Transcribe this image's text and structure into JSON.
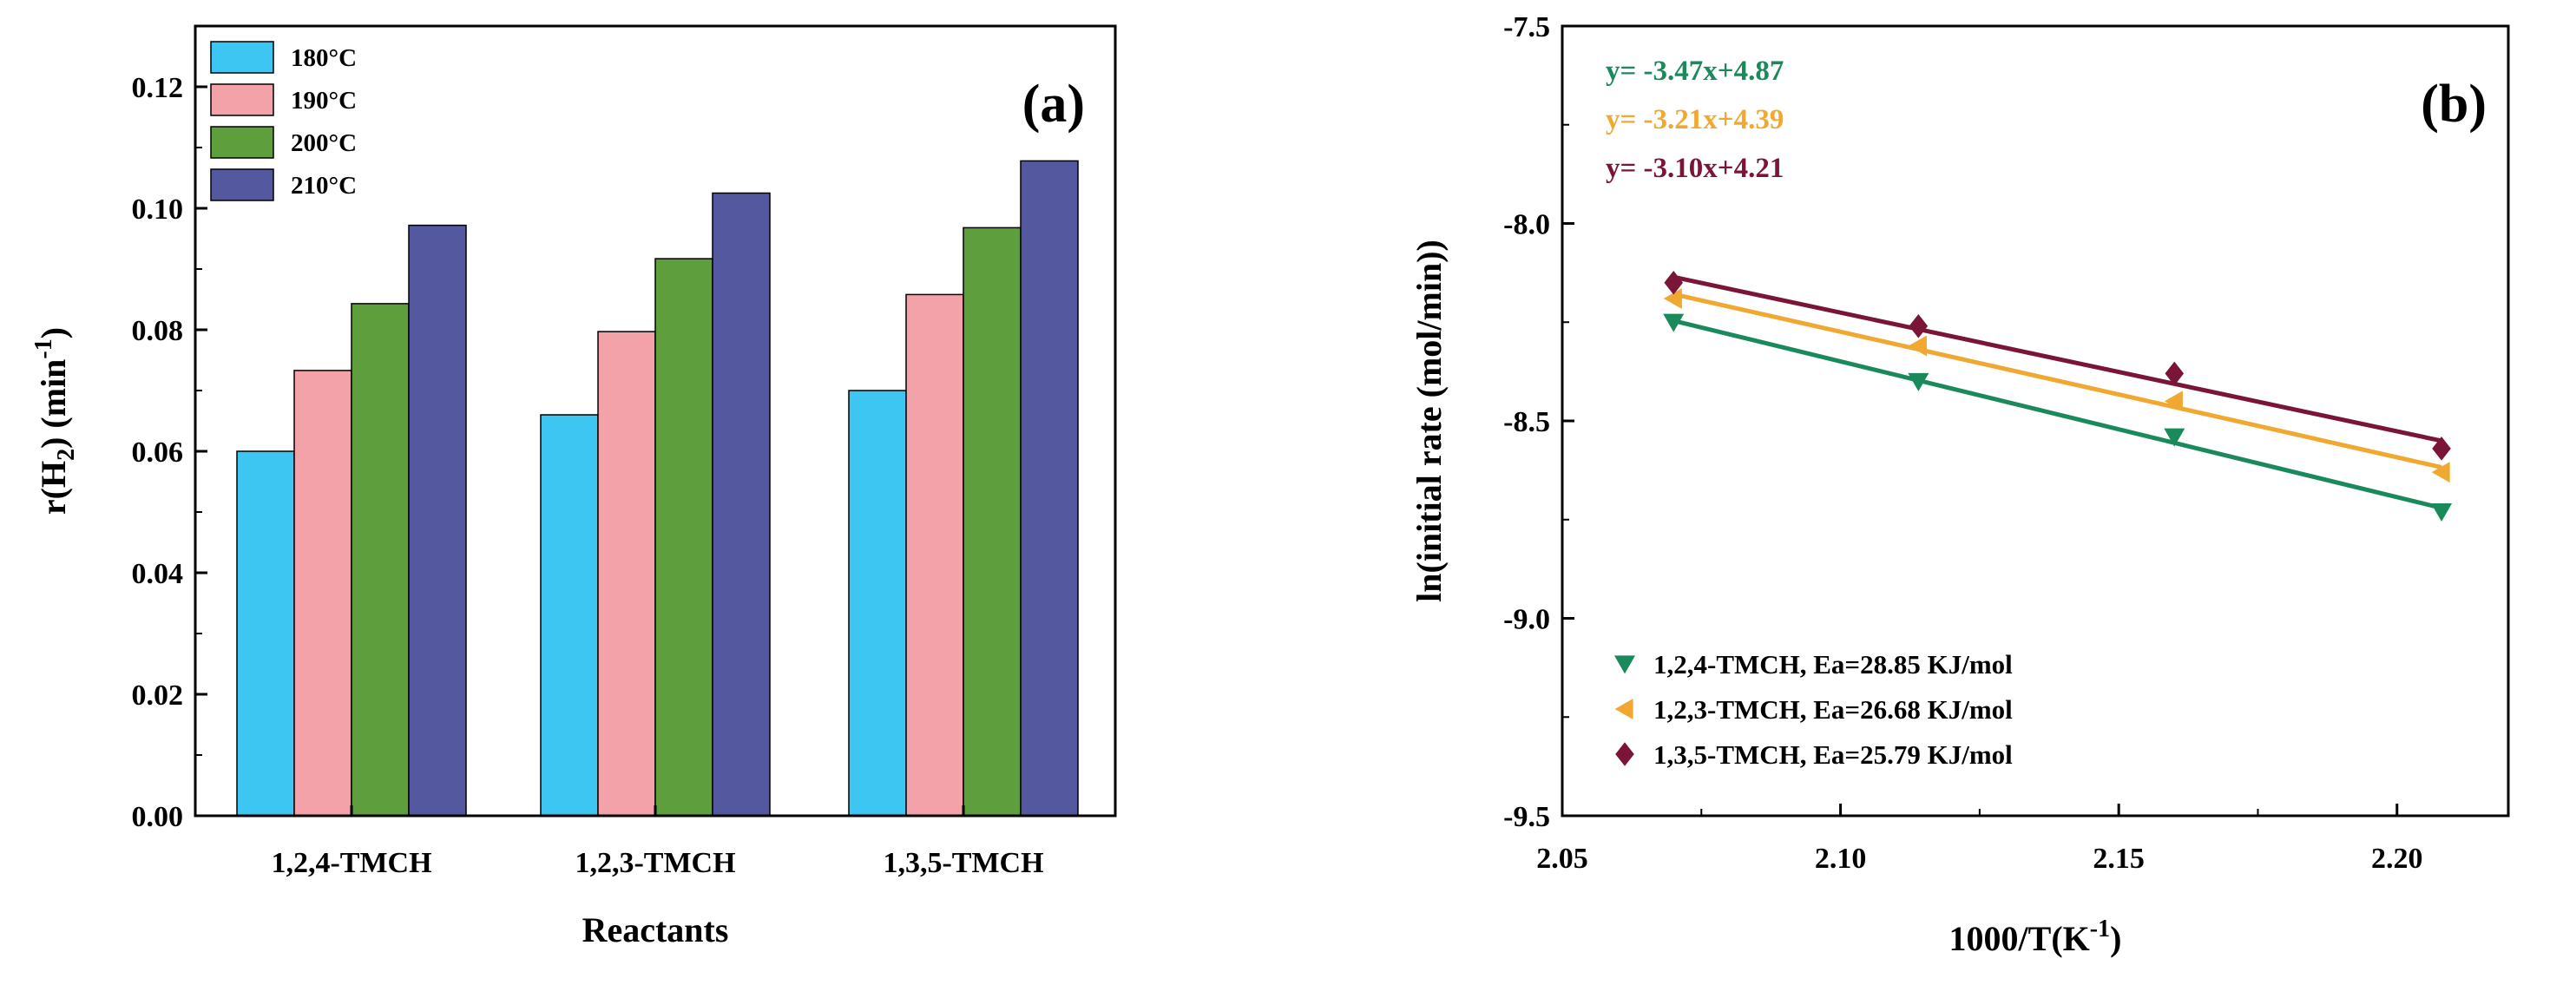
{
  "chart_data": [
    {
      "type": "bar",
      "panel_label": "(a)",
      "categories": [
        "1,2,4-TMCH",
        "1,2,3-TMCH",
        "1,3,5-TMCH"
      ],
      "series": [
        {
          "name": "180°C",
          "color": "#3ec6f2",
          "values": [
            0.06,
            0.066,
            0.07
          ]
        },
        {
          "name": "190°C",
          "color": "#f2a2a8",
          "values": [
            0.0733,
            0.0797,
            0.0858
          ]
        },
        {
          "name": "200°C",
          "color": "#5f9e3c",
          "values": [
            0.0843,
            0.0917,
            0.0968
          ]
        },
        {
          "name": "210°C",
          "color": "#54589f",
          "values": [
            0.0972,
            0.1025,
            0.1078
          ]
        }
      ],
      "xlabel": "Reactants",
      "ylabel_main": "r(H",
      "ylabel_sub": "2",
      "ylabel_rest": ") (min",
      "ylabel_sup": "-1",
      "ylabel_end": ")",
      "ylim": [
        0.0,
        0.13
      ],
      "yticks": [
        "0.00",
        "0.02",
        "0.04",
        "0.06",
        "0.08",
        "0.10",
        "0.12"
      ],
      "legend_position": "top-left"
    },
    {
      "type": "scatter",
      "panel_label": "(b)",
      "xlabel_main": "1000/T(K",
      "xlabel_sup": "-1",
      "xlabel_end": ")",
      "ylabel": "ln(initial rate (mol/min))",
      "xlim": [
        2.05,
        2.22
      ],
      "ylim": [
        -9.5,
        -7.5
      ],
      "xticks": [
        "2.05",
        "2.10",
        "2.15",
        "2.20"
      ],
      "yticks": [
        "-7.5",
        "-8.0",
        "-8.5",
        "-9.0",
        "-9.5"
      ],
      "legend_position": "bottom-left",
      "series": [
        {
          "name": "1,2,4-TMCH, Ea=28.85 KJ/mol",
          "marker": "triangle-down",
          "color": "#1a8a5a",
          "fit": "y= -3.47x+4.87",
          "slope": -3.47,
          "intercept": 4.87,
          "x": [
            2.07,
            2.114,
            2.16,
            2.208
          ],
          "y": [
            -8.25,
            -8.4,
            -8.54,
            -8.73
          ]
        },
        {
          "name": "1,2,3-TMCH, Ea=26.68 KJ/mol",
          "marker": "triangle-left",
          "color": "#f0a830",
          "fit": "y= -3.21x+4.39",
          "slope": -3.21,
          "intercept": 4.39,
          "x": [
            2.07,
            2.114,
            2.16,
            2.208
          ],
          "y": [
            -8.19,
            -8.31,
            -8.45,
            -8.63
          ]
        },
        {
          "name": "1,3,5-TMCH, Ea=25.79 KJ/mol",
          "marker": "diamond",
          "color": "#7a1538",
          "fit": "y= -3.10x+4.21",
          "slope": -3.1,
          "intercept": 4.21,
          "x": [
            2.07,
            2.114,
            2.16,
            2.208
          ],
          "y": [
            -8.15,
            -8.26,
            -8.38,
            -8.57
          ]
        }
      ]
    }
  ]
}
